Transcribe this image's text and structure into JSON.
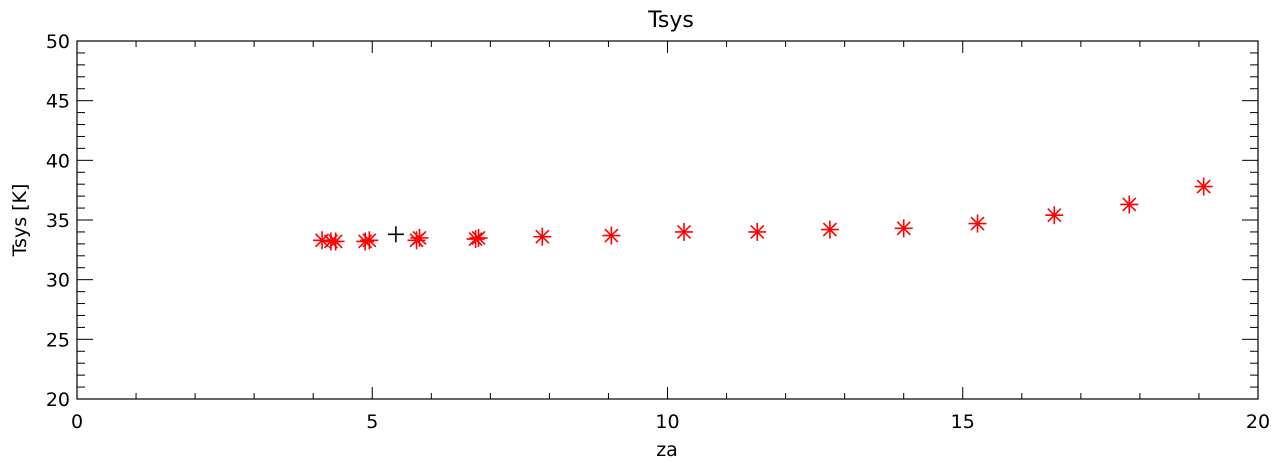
{
  "chart_data": {
    "type": "scatter",
    "title": "Tsys",
    "xlabel": "za",
    "ylabel": "Tsys [K]",
    "xlim": [
      0,
      20
    ],
    "ylim": [
      20,
      50
    ],
    "grid": false,
    "x_ticks": [
      0,
      5,
      10,
      15,
      20
    ],
    "x_tick_labels": [
      "0",
      "5",
      "10",
      "15",
      "20"
    ],
    "y_ticks": [
      20,
      25,
      30,
      35,
      40,
      45,
      50
    ],
    "y_tick_labels": [
      "20",
      "25",
      "30",
      "35",
      "40",
      "45",
      "50"
    ],
    "series": [
      {
        "marker": "asterisk",
        "color": "#ff0000",
        "points": [
          {
            "x": 4.15,
            "y": 33.3
          },
          {
            "x": 4.3,
            "y": 33.2
          },
          {
            "x": 4.38,
            "y": 33.2
          },
          {
            "x": 4.88,
            "y": 33.2
          },
          {
            "x": 4.95,
            "y": 33.3
          },
          {
            "x": 5.75,
            "y": 33.3
          },
          {
            "x": 5.8,
            "y": 33.5
          },
          {
            "x": 6.75,
            "y": 33.4
          },
          {
            "x": 6.8,
            "y": 33.5
          },
          {
            "x": 7.88,
            "y": 33.6
          },
          {
            "x": 9.05,
            "y": 33.7
          },
          {
            "x": 10.28,
            "y": 34.0
          },
          {
            "x": 11.52,
            "y": 34.0
          },
          {
            "x": 12.75,
            "y": 34.2
          },
          {
            "x": 14.0,
            "y": 34.3
          },
          {
            "x": 15.25,
            "y": 34.7
          },
          {
            "x": 16.55,
            "y": 35.4
          },
          {
            "x": 17.82,
            "y": 36.3
          },
          {
            "x": 19.08,
            "y": 37.8
          }
        ]
      },
      {
        "marker": "plus",
        "color": "#000000",
        "points": [
          {
            "x": 5.4,
            "y": 33.8
          }
        ]
      }
    ]
  }
}
